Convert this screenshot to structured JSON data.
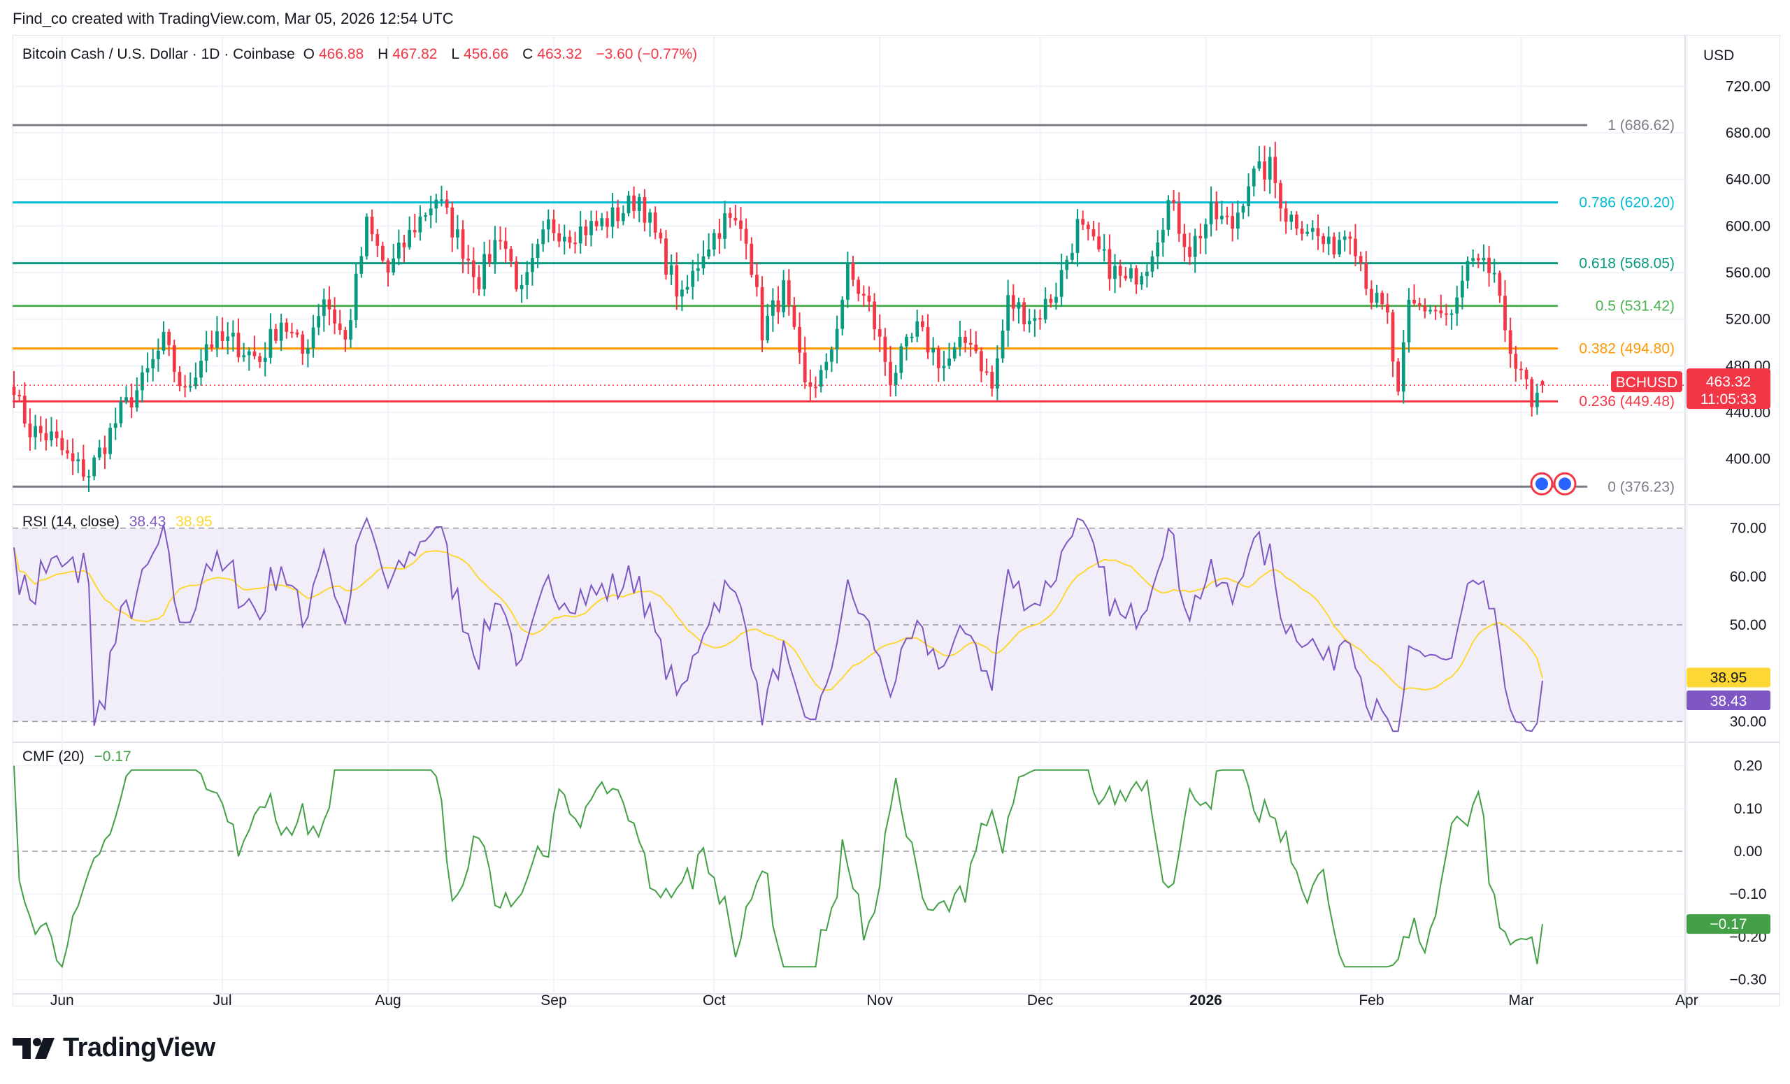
{
  "watermark": "Find_co created with TradingView.com, Mar 05, 2026 12:54 UTC",
  "header": {
    "symbol": "Bitcoin Cash / U.S. Dollar · 1D · Coinbase",
    "open_label": "O",
    "open": "466.88",
    "high_label": "H",
    "high": "467.82",
    "low_label": "L",
    "low": "456.66",
    "close_label": "C",
    "close": "463.32",
    "change": "−3.60 (−0.77%)"
  },
  "currency": "USD",
  "price_axis": {
    "ticks": [
      "720.00",
      "680.00",
      "640.00",
      "600.00",
      "560.00",
      "520.00",
      "480.00",
      "440.00",
      "400.00"
    ],
    "values": [
      720,
      680,
      640,
      600,
      560,
      520,
      480,
      440,
      400
    ],
    "range": [
      362,
      752
    ]
  },
  "last_price": {
    "symbol": "BCHUSD",
    "price": "463.32",
    "countdown": "11:05:33",
    "value": 463.32,
    "color": "#f23645"
  },
  "fib_levels": [
    {
      "label": "1 (686.62)",
      "value": 686.62,
      "color": "#787b86"
    },
    {
      "label": "0.786 (620.20)",
      "value": 620.2,
      "color": "#00bcd4"
    },
    {
      "label": "0.618 (568.05)",
      "value": 568.05,
      "color": "#089981"
    },
    {
      "label": "0.5 (531.42)",
      "value": 531.42,
      "color": "#4caf50"
    },
    {
      "label": "0.382 (494.80)",
      "value": 494.8,
      "color": "#ff9800"
    },
    {
      "label": "0.236 (449.48)",
      "value": 449.48,
      "color": "#f23645"
    },
    {
      "label": "0 (376.23)",
      "value": 376.23,
      "color": "#787b86"
    }
  ],
  "rsi": {
    "title": "RSI (14, close)",
    "value": "38.43",
    "ma_value": "38.95",
    "ticks": [
      "70.00",
      "60.00",
      "50.00",
      "40.00",
      "30.00"
    ],
    "tick_values": [
      70,
      60,
      50,
      40,
      30
    ],
    "range": [
      26,
      74
    ],
    "band": [
      30,
      70
    ],
    "line_color": "#7e57c2",
    "ma_color": "#fdd835"
  },
  "cmf": {
    "title": "CMF (20)",
    "value": "−0.17",
    "ticks": [
      "0.20",
      "0.10",
      "0.00",
      "−0.10",
      "−0.20",
      "−0.30"
    ],
    "tick_values": [
      0.2,
      0.1,
      0.0,
      -0.1,
      -0.2,
      -0.3
    ],
    "range": [
      -0.33,
      0.25
    ],
    "line_color": "#43a047"
  },
  "time_axis": {
    "labels": [
      "Jun",
      "Jul",
      "Aug",
      "Sep",
      "Oct",
      "Nov",
      "Dec",
      "2026",
      "Feb",
      "Mar",
      "Apr"
    ],
    "bold": "2026"
  },
  "colors": {
    "up": "#089981",
    "down": "#f23645",
    "grid": "#f0f3fa",
    "text": "#131722"
  },
  "chart_data": {
    "type": "candlestick",
    "title": "Bitcoin Cash / U.S. Dollar · 1D · Coinbase",
    "interval": "1D",
    "x_range": [
      "2025-05-23",
      "2026-03-05"
    ],
    "ylim": [
      362,
      752
    ],
    "anchors": [
      [
        "2025-05-23",
        455
      ],
      [
        "2025-05-26",
        425
      ],
      [
        "2025-05-30",
        418
      ],
      [
        "2025-06-03",
        395
      ],
      [
        "2025-06-06",
        388
      ],
      [
        "2025-06-12",
        440
      ],
      [
        "2025-06-16",
        465
      ],
      [
        "2025-06-20",
        500
      ],
      [
        "2025-06-24",
        455
      ],
      [
        "2025-06-28",
        500
      ],
      [
        "2025-07-03",
        500
      ],
      [
        "2025-07-08",
        485
      ],
      [
        "2025-07-12",
        520
      ],
      [
        "2025-07-16",
        490
      ],
      [
        "2025-07-20",
        540
      ],
      [
        "2025-07-24",
        500
      ],
      [
        "2025-07-28",
        600
      ],
      [
        "2025-08-01",
        560
      ],
      [
        "2025-08-06",
        600
      ],
      [
        "2025-08-10",
        625
      ],
      [
        "2025-08-14",
        590
      ],
      [
        "2025-08-18",
        555
      ],
      [
        "2025-08-22",
        595
      ],
      [
        "2025-08-26",
        540
      ],
      [
        "2025-08-31",
        600
      ],
      [
        "2025-09-04",
        595
      ],
      [
        "2025-09-09",
        600
      ],
      [
        "2025-09-13",
        610
      ],
      [
        "2025-09-17",
        625
      ],
      [
        "2025-09-21",
        580
      ],
      [
        "2025-09-25",
        535
      ],
      [
        "2025-09-29",
        580
      ],
      [
        "2025-10-03",
        605
      ],
      [
        "2025-10-07",
        595
      ],
      [
        "2025-10-10",
        510
      ],
      [
        "2025-10-14",
        545
      ],
      [
        "2025-10-18",
        460
      ],
      [
        "2025-10-22",
        475
      ],
      [
        "2025-10-26",
        560
      ],
      [
        "2025-10-30",
        530
      ],
      [
        "2025-11-03",
        470
      ],
      [
        "2025-11-08",
        510
      ],
      [
        "2025-11-13",
        480
      ],
      [
        "2025-11-18",
        505
      ],
      [
        "2025-11-22",
        460
      ],
      [
        "2025-11-25",
        535
      ],
      [
        "2025-11-30",
        520
      ],
      [
        "2025-12-04",
        545
      ],
      [
        "2025-12-08",
        600
      ],
      [
        "2025-12-13",
        570
      ],
      [
        "2025-12-17",
        550
      ],
      [
        "2025-12-21",
        570
      ],
      [
        "2025-12-25",
        620
      ],
      [
        "2025-12-29",
        580
      ],
      [
        "2026-01-02",
        610
      ],
      [
        "2026-01-06",
        600
      ],
      [
        "2026-01-09",
        640
      ],
      [
        "2026-01-13",
        650
      ],
      [
        "2026-01-16",
        610
      ],
      [
        "2026-01-20",
        600
      ],
      [
        "2026-01-24",
        580
      ],
      [
        "2026-01-28",
        600
      ],
      [
        "2026-02-01",
        540
      ],
      [
        "2026-02-04",
        520
      ],
      [
        "2026-02-06",
        450
      ],
      [
        "2026-02-08",
        530
      ],
      [
        "2026-02-12",
        530
      ],
      [
        "2026-02-16",
        520
      ],
      [
        "2026-02-19",
        565
      ],
      [
        "2026-02-24",
        560
      ],
      [
        "2026-02-26",
        500
      ],
      [
        "2026-03-01",
        480
      ],
      [
        "2026-03-03",
        440
      ],
      [
        "2026-03-05",
        463
      ]
    ],
    "last": {
      "open": 466.88,
      "high": 467.82,
      "low": 456.66,
      "close": 463.32
    },
    "indicators": {
      "rsi_14": {
        "current": 38.43,
        "ma": 38.95
      },
      "cmf_20": {
        "current": -0.17
      }
    }
  }
}
